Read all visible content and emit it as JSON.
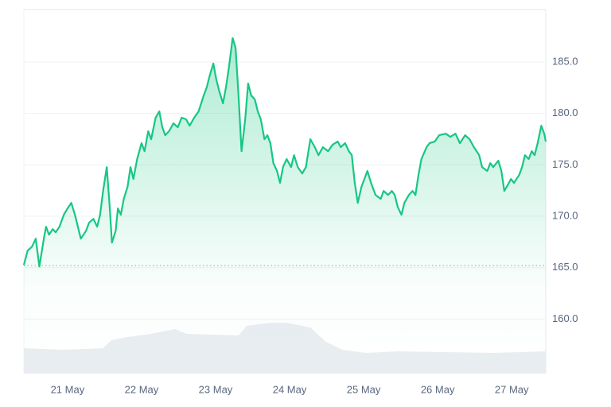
{
  "chart_data": {
    "type": "area",
    "color": "#16c784",
    "volume_color": "#e9edf1",
    "grid": true,
    "xlim": [
      -0.59,
      6.46
    ],
    "xticks": [
      {
        "value": 0,
        "label": "21 May"
      },
      {
        "value": 1,
        "label": "22 May"
      },
      {
        "value": 2,
        "label": "23 May"
      },
      {
        "value": 3,
        "label": "24 May"
      },
      {
        "value": 4,
        "label": "25 May"
      },
      {
        "value": 5,
        "label": "26 May"
      },
      {
        "value": 6,
        "label": "27 May"
      }
    ],
    "ylim": [
      154.7,
      190.1
    ],
    "yticks": [
      {
        "value": 160,
        "label": "160.0"
      },
      {
        "value": 165,
        "label": "165.0"
      },
      {
        "value": 170,
        "label": "170.0"
      },
      {
        "value": 175,
        "label": "175.0"
      },
      {
        "value": 180,
        "label": "180.0"
      },
      {
        "value": 185,
        "label": "185.0"
      }
    ],
    "reference_line": 165.2,
    "x": [
      -0.59,
      -0.54,
      -0.48,
      -0.43,
      -0.38,
      -0.32,
      -0.29,
      -0.25,
      -0.2,
      -0.16,
      -0.11,
      -0.05,
      0,
      0.05,
      0.1,
      0.14,
      0.18,
      0.25,
      0.29,
      0.35,
      0.4,
      0.44,
      0.48,
      0.53,
      0.57,
      0.6,
      0.65,
      0.68,
      0.72,
      0.76,
      0.81,
      0.85,
      0.89,
      0.94,
      1.0,
      1.04,
      1.09,
      1.13,
      1.19,
      1.24,
      1.28,
      1.32,
      1.37,
      1.43,
      1.49,
      1.54,
      1.6,
      1.65,
      1.71,
      1.77,
      1.84,
      1.88,
      1.92,
      1.97,
      2.01,
      2.05,
      2.1,
      2.14,
      2.18,
      2.23,
      2.27,
      2.31,
      2.35,
      2.4,
      2.44,
      2.48,
      2.53,
      2.57,
      2.61,
      2.66,
      2.7,
      2.74,
      2.78,
      2.83,
      2.87,
      2.91,
      2.96,
      3.02,
      3.06,
      3.11,
      3.17,
      3.22,
      3.28,
      3.34,
      3.39,
      3.45,
      3.52,
      3.58,
      3.65,
      3.69,
      3.75,
      3.8,
      3.84,
      3.88,
      3.92,
      3.97,
      4.01,
      4.05,
      4.1,
      4.16,
      4.23,
      4.27,
      4.33,
      4.38,
      4.42,
      4.46,
      4.51,
      4.55,
      4.61,
      4.66,
      4.7,
      4.74,
      4.78,
      4.85,
      4.89,
      4.96,
      5.02,
      5.11,
      5.17,
      5.24,
      5.3,
      5.37,
      5.43,
      5.49,
      5.56,
      5.6,
      5.67,
      5.71,
      5.75,
      5.82,
      5.86,
      5.9,
      5.95,
      5.99,
      6.03,
      6.1,
      6.14,
      6.18,
      6.23,
      6.27,
      6.31,
      6.35,
      6.4,
      6.44,
      6.46
    ],
    "values": [
      165.26,
      166.66,
      167.04,
      167.82,
      165.11,
      167.82,
      168.98,
      168.2,
      168.75,
      168.44,
      168.98,
      170.14,
      170.76,
      171.3,
      170.14,
      168.98,
      167.82,
      168.59,
      169.37,
      169.75,
      168.98,
      170.14,
      172.46,
      174.78,
      170.91,
      167.43,
      168.59,
      170.76,
      170.14,
      171.69,
      172.85,
      174.78,
      173.62,
      175.56,
      177.11,
      176.33,
      178.27,
      177.49,
      179.58,
      180.2,
      178.65,
      177.88,
      178.27,
      179.04,
      178.65,
      179.58,
      179.43,
      178.81,
      179.58,
      180.2,
      181.75,
      182.52,
      183.68,
      184.85,
      183.3,
      182.14,
      180.98,
      182.52,
      184.46,
      187.32,
      186.39,
      181.75,
      176.33,
      179.43,
      182.91,
      181.75,
      181.36,
      180.2,
      179.43,
      177.49,
      177.88,
      177.11,
      175.17,
      174.4,
      173.24,
      174.78,
      175.56,
      174.78,
      175.94,
      174.78,
      174.16,
      174.78,
      177.49,
      176.72,
      175.94,
      176.72,
      176.33,
      176.95,
      177.26,
      176.72,
      177.11,
      176.33,
      175.94,
      173.24,
      171.3,
      172.85,
      173.62,
      174.4,
      173.24,
      172.07,
      171.69,
      172.46,
      172.07,
      172.46,
      172.07,
      170.91,
      170.14,
      171.3,
      172.07,
      172.46,
      172.07,
      174.01,
      175.56,
      176.72,
      177.11,
      177.26,
      177.88,
      178.03,
      177.72,
      178.03,
      177.11,
      177.88,
      177.49,
      176.72,
      175.94,
      174.78,
      174.4,
      175.17,
      174.78,
      175.4,
      174.4,
      172.46,
      173.08,
      173.62,
      173.24,
      174.01,
      174.78,
      175.94,
      175.56,
      176.33,
      175.94,
      177.11,
      178.81,
      178.03,
      177.26
    ],
    "y2lim": [
      0,
      200
    ],
    "volume": {
      "x": [
        -0.59,
        -0.05,
        0.48,
        0.59,
        0.81,
        1.13,
        1.45,
        1.61,
        2.31,
        2.42,
        2.74,
        2.96,
        3.28,
        3.49,
        3.71,
        4.03,
        4.46,
        5.11,
        5.75,
        6.46
      ],
      "values": [
        13.97,
        13.1,
        13.97,
        18.34,
        20.09,
        21.83,
        24.45,
        21.83,
        20.96,
        26.2,
        27.95,
        27.95,
        25.33,
        17.47,
        13.1,
        11.35,
        12.23,
        11.79,
        11.35,
        12.23
      ]
    }
  }
}
